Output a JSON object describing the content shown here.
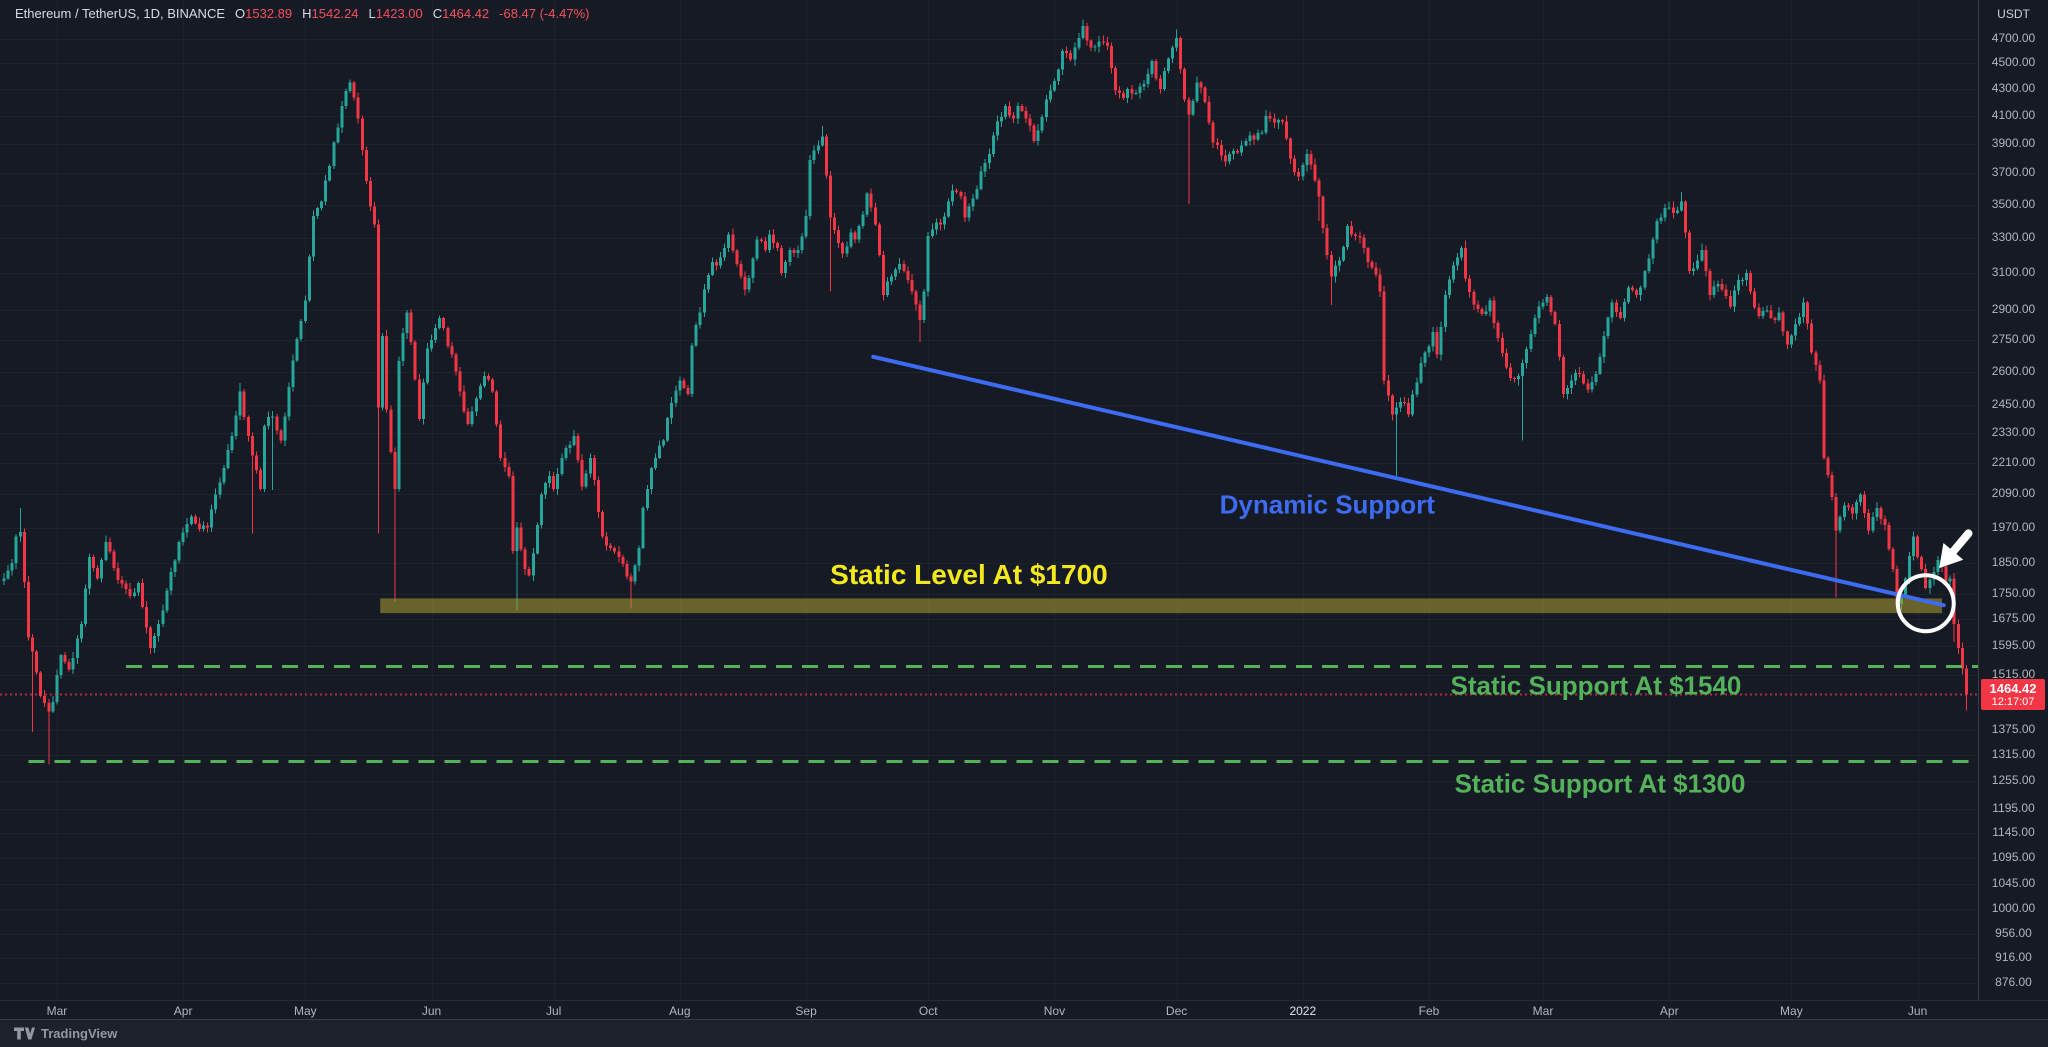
{
  "header": {
    "symbol_title": "Ethereum / TetherUS, 1D, BINANCE",
    "ohlc": {
      "o_label": "O",
      "o_value": "1532.89",
      "h_label": "H",
      "h_value": "1542.24",
      "l_label": "L",
      "l_value": "1423.00",
      "c_label": "C",
      "c_value": "1464.42",
      "change": "-68.47 (-4.47%)"
    }
  },
  "footer": {
    "brand": "TradingView"
  },
  "chart_data": {
    "type": "candlestick",
    "title": "Ethereum / TetherUS",
    "exchange": "BINANCE",
    "interval": "1D",
    "price_scale": "log",
    "currency_label": "USDT",
    "colors": {
      "up": "#26a69a",
      "down": "#f23645",
      "background": "#161a25",
      "axis_text": "#b2b5be",
      "badge": "#f23645",
      "trendline": "#3d6cf2",
      "level_text": "#f3e71d",
      "band_fill": "rgba(172,160,50,0.55)",
      "support": "#54b35a",
      "last_price_line": "#f23645",
      "highlight": "#ffffff"
    },
    "y_axis": {
      "ticks": [
        "4700.00",
        "4500.00",
        "4300.00",
        "4100.00",
        "3900.00",
        "3700.00",
        "3500.00",
        "3300.00",
        "3100.00",
        "2900.00",
        "2750.00",
        "2600.00",
        "2450.00",
        "2330.00",
        "2210.00",
        "2090.00",
        "1970.00",
        "1850.00",
        "1750.00",
        "1675.00",
        "1595.00",
        "1515.00",
        "1375.00",
        "1315.00",
        "1255.00",
        "1195.00",
        "1145.00",
        "1095.00",
        "1045.00",
        "1000.00",
        "956.00",
        "916.00",
        "876.00"
      ]
    },
    "x_axis": {
      "start_date": "2021-02-16",
      "labels": [
        {
          "text": "Mar",
          "day": 13
        },
        {
          "text": "Apr",
          "day": 44
        },
        {
          "text": "May",
          "day": 74
        },
        {
          "text": "Jun",
          "day": 105
        },
        {
          "text": "Jul",
          "day": 135
        },
        {
          "text": "Aug",
          "day": 166
        },
        {
          "text": "Sep",
          "day": 197
        },
        {
          "text": "Oct",
          "day": 227
        },
        {
          "text": "Nov",
          "day": 258
        },
        {
          "text": "Dec",
          "day": 288
        },
        {
          "text": "2022",
          "day": 319,
          "year": true
        },
        {
          "text": "Feb",
          "day": 350
        },
        {
          "text": "Mar",
          "day": 378
        },
        {
          "text": "Apr",
          "day": 409
        },
        {
          "text": "May",
          "day": 439
        },
        {
          "text": "Jun",
          "day": 470
        }
      ]
    },
    "last_candle": {
      "open": 1532.89,
      "high": 1542.24,
      "low": 1423.0,
      "close": 1464.42,
      "change": -68.47,
      "change_pct": -4.47
    },
    "last_price": {
      "value": "1464.42",
      "countdown": "12:17:07"
    },
    "close_anchors": [
      [
        0,
        1800
      ],
      [
        2,
        1850
      ],
      [
        3,
        1940
      ],
      [
        4,
        1955
      ],
      [
        6,
        1620
      ],
      [
        7,
        1580
      ],
      [
        9,
        1460
      ],
      [
        11,
        1420
      ],
      [
        12,
        1445
      ],
      [
        14,
        1570
      ],
      [
        16,
        1530
      ],
      [
        19,
        1660
      ],
      [
        21,
        1870
      ],
      [
        23,
        1800
      ],
      [
        25,
        1920
      ],
      [
        28,
        1795
      ],
      [
        31,
        1745
      ],
      [
        33,
        1785
      ],
      [
        36,
        1590
      ],
      [
        39,
        1700
      ],
      [
        41,
        1820
      ],
      [
        43,
        1920
      ],
      [
        46,
        2010
      ],
      [
        48,
        1965
      ],
      [
        50,
        1970
      ],
      [
        53,
        2135
      ],
      [
        56,
        2320
      ],
      [
        58,
        2510
      ],
      [
        60,
        2320
      ],
      [
        61,
        2240
      ],
      [
        63,
        2110
      ],
      [
        64,
        2360
      ],
      [
        66,
        2400
      ],
      [
        68,
        2300
      ],
      [
        70,
        2530
      ],
      [
        72,
        2755
      ],
      [
        74,
        2950
      ],
      [
        76,
        3430
      ],
      [
        78,
        3520
      ],
      [
        80,
        3750
      ],
      [
        81,
        3910
      ],
      [
        83,
        4170
      ],
      [
        85,
        4350
      ],
      [
        87,
        4080
      ],
      [
        89,
        3650
      ],
      [
        91,
        3380
      ],
      [
        92,
        2440
      ],
      [
        93,
        2770
      ],
      [
        94,
        2430
      ],
      [
        96,
        2110
      ],
      [
        97,
        2650
      ],
      [
        99,
        2890
      ],
      [
        100,
        2740
      ],
      [
        102,
        2390
      ],
      [
        104,
        2710
      ],
      [
        107,
        2860
      ],
      [
        110,
        2680
      ],
      [
        112,
        2510
      ],
      [
        114,
        2370
      ],
      [
        116,
        2480
      ],
      [
        118,
        2580
      ],
      [
        120,
        2510
      ],
      [
        122,
        2230
      ],
      [
        124,
        2160
      ],
      [
        125,
        1890
      ],
      [
        126,
        1970
      ],
      [
        128,
        1830
      ],
      [
        129,
        1810
      ],
      [
        131,
        1980
      ],
      [
        132,
        2090
      ],
      [
        134,
        2160
      ],
      [
        135,
        2110
      ],
      [
        137,
        2230
      ],
      [
        140,
        2320
      ],
      [
        142,
        2120
      ],
      [
        144,
        2230
      ],
      [
        147,
        1940
      ],
      [
        149,
        1900
      ],
      [
        151,
        1870
      ],
      [
        154,
        1790
      ],
      [
        156,
        1900
      ],
      [
        157,
        2040
      ],
      [
        159,
        2190
      ],
      [
        160,
        2230
      ],
      [
        162,
        2300
      ],
      [
        164,
        2460
      ],
      [
        166,
        2560
      ],
      [
        168,
        2500
      ],
      [
        169,
        2725
      ],
      [
        171,
        2890
      ],
      [
        172,
        3010
      ],
      [
        174,
        3160
      ],
      [
        175,
        3140
      ],
      [
        177,
        3240
      ],
      [
        178,
        3320
      ],
      [
        180,
        3150
      ],
      [
        182,
        3010
      ],
      [
        184,
        3180
      ],
      [
        185,
        3290
      ],
      [
        187,
        3230
      ],
      [
        188,
        3320
      ],
      [
        190,
        3240
      ],
      [
        191,
        3100
      ],
      [
        193,
        3230
      ],
      [
        195,
        3230
      ],
      [
        197,
        3430
      ],
      [
        198,
        3790
      ],
      [
        200,
        3890
      ],
      [
        201,
        3950
      ],
      [
        203,
        3420
      ],
      [
        205,
        3270
      ],
      [
        206,
        3210
      ],
      [
        208,
        3330
      ],
      [
        209,
        3290
      ],
      [
        211,
        3440
      ],
      [
        212,
        3570
      ],
      [
        214,
        3380
      ],
      [
        216,
        2980
      ],
      [
        218,
        3080
      ],
      [
        220,
        3150
      ],
      [
        222,
        3060
      ],
      [
        224,
        2930
      ],
      [
        225,
        2850
      ],
      [
        226,
        3000
      ],
      [
        227,
        3310
      ],
      [
        229,
        3390
      ],
      [
        230,
        3380
      ],
      [
        232,
        3520
      ],
      [
        233,
        3590
      ],
      [
        235,
        3550
      ],
      [
        236,
        3420
      ],
      [
        238,
        3540
      ],
      [
        239,
        3600
      ],
      [
        241,
        3770
      ],
      [
        242,
        3830
      ],
      [
        244,
        4060
      ],
      [
        246,
        4170
      ],
      [
        248,
        4080
      ],
      [
        249,
        4170
      ],
      [
        251,
        4080
      ],
      [
        253,
        3920
      ],
      [
        255,
        4090
      ],
      [
        257,
        4290
      ],
      [
        259,
        4450
      ],
      [
        260,
        4600
      ],
      [
        262,
        4530
      ],
      [
        264,
        4710
      ],
      [
        265,
        4810
      ],
      [
        267,
        4630
      ],
      [
        269,
        4680
      ],
      [
        271,
        4640
      ],
      [
        273,
        4290
      ],
      [
        275,
        4230
      ],
      [
        276,
        4300
      ],
      [
        278,
        4270
      ],
      [
        280,
        4340
      ],
      [
        282,
        4520
      ],
      [
        284,
        4300
      ],
      [
        285,
        4440
      ],
      [
        287,
        4630
      ],
      [
        288,
        4710
      ],
      [
        290,
        4220
      ],
      [
        291,
        4110
      ],
      [
        293,
        4350
      ],
      [
        294,
        4310
      ],
      [
        296,
        4050
      ],
      [
        297,
        3910
      ],
      [
        299,
        3820
      ],
      [
        300,
        3780
      ],
      [
        302,
        3850
      ],
      [
        304,
        3890
      ],
      [
        306,
        3960
      ],
      [
        307,
        3930
      ],
      [
        309,
        3980
      ],
      [
        310,
        4100
      ],
      [
        312,
        4050
      ],
      [
        314,
        4060
      ],
      [
        316,
        3800
      ],
      [
        318,
        3680
      ],
      [
        320,
        3830
      ],
      [
        321,
        3760
      ],
      [
        323,
        3550
      ],
      [
        325,
        3200
      ],
      [
        326,
        3080
      ],
      [
        328,
        3170
      ],
      [
        330,
        3370
      ],
      [
        332,
        3310
      ],
      [
        334,
        3240
      ],
      [
        335,
        3160
      ],
      [
        337,
        3090
      ],
      [
        338,
        3000
      ],
      [
        339,
        2560
      ],
      [
        341,
        2410
      ],
      [
        342,
        2440
      ],
      [
        344,
        2460
      ],
      [
        345,
        2410
      ],
      [
        347,
        2550
      ],
      [
        349,
        2690
      ],
      [
        351,
        2790
      ],
      [
        352,
        2680
      ],
      [
        354,
        2980
      ],
      [
        356,
        3140
      ],
      [
        358,
        3240
      ],
      [
        359,
        3070
      ],
      [
        361,
        2930
      ],
      [
        363,
        2880
      ],
      [
        365,
        2950
      ],
      [
        367,
        2760
      ],
      [
        369,
        2620
      ],
      [
        370,
        2570
      ],
      [
        372,
        2580
      ],
      [
        373,
        2640
      ],
      [
        375,
        2780
      ],
      [
        377,
        2920
      ],
      [
        379,
        2970
      ],
      [
        381,
        2830
      ],
      [
        383,
        2500
      ],
      [
        385,
        2560
      ],
      [
        387,
        2590
      ],
      [
        389,
        2520
      ],
      [
        391,
        2590
      ],
      [
        393,
        2770
      ],
      [
        395,
        2940
      ],
      [
        397,
        2860
      ],
      [
        399,
        3020
      ],
      [
        401,
        2980
      ],
      [
        403,
        3110
      ],
      [
        405,
        3290
      ],
      [
        406,
        3400
      ],
      [
        408,
        3480
      ],
      [
        410,
        3450
      ],
      [
        412,
        3520
      ],
      [
        414,
        3110
      ],
      [
        416,
        3170
      ],
      [
        417,
        3230
      ],
      [
        419,
        2980
      ],
      [
        421,
        3040
      ],
      [
        422,
        3010
      ],
      [
        424,
        2920
      ],
      [
        426,
        3060
      ],
      [
        428,
        3100
      ],
      [
        429,
        3000
      ],
      [
        431,
        2870
      ],
      [
        433,
        2900
      ],
      [
        435,
        2850
      ],
      [
        436,
        2890
      ],
      [
        438,
        2730
      ],
      [
        440,
        2830
      ],
      [
        442,
        2940
      ],
      [
        444,
        2690
      ],
      [
        446,
        2560
      ],
      [
        447,
        2230
      ],
      [
        449,
        2080
      ],
      [
        450,
        1960
      ],
      [
        452,
        2050
      ],
      [
        454,
        2020
      ],
      [
        456,
        2090
      ],
      [
        458,
        1960
      ],
      [
        460,
        2040
      ],
      [
        462,
        1980
      ],
      [
        464,
        1830
      ],
      [
        465,
        1720
      ],
      [
        467,
        1800
      ],
      [
        469,
        1940
      ],
      [
        471,
        1830
      ],
      [
        472,
        1770
      ],
      [
        474,
        1820
      ],
      [
        475,
        1860
      ],
      [
        477,
        1790
      ],
      [
        478,
        1800
      ],
      [
        479,
        1660
      ],
      [
        480,
        1590
      ],
      [
        481,
        1533
      ],
      [
        482,
        1464.42
      ]
    ],
    "wick_overrides": [
      {
        "day": 4,
        "high": 2040
      },
      {
        "day": 7,
        "low": 1370
      },
      {
        "day": 11,
        "low": 1293
      },
      {
        "day": 25,
        "high": 1943
      },
      {
        "day": 58,
        "high": 2548
      },
      {
        "day": 61,
        "low": 1950
      },
      {
        "day": 66,
        "low": 2107
      },
      {
        "day": 85,
        "high": 4375
      },
      {
        "day": 92,
        "low": 1950
      },
      {
        "day": 96,
        "low": 1728
      },
      {
        "day": 126,
        "low": 1700
      },
      {
        "day": 154,
        "low": 1706
      },
      {
        "day": 201,
        "high": 4027
      },
      {
        "day": 203,
        "low": 3001
      },
      {
        "day": 216,
        "low": 2950
      },
      {
        "day": 225,
        "low": 2740
      },
      {
        "day": 265,
        "high": 4868
      },
      {
        "day": 288,
        "high": 4780
      },
      {
        "day": 291,
        "low": 3503
      },
      {
        "day": 323,
        "low": 3400
      },
      {
        "day": 326,
        "low": 2928
      },
      {
        "day": 342,
        "low": 2159
      },
      {
        "day": 359,
        "high": 3283
      },
      {
        "day": 373,
        "low": 2300
      },
      {
        "day": 412,
        "high": 3581
      },
      {
        "day": 450,
        "low": 1739
      },
      {
        "day": 465,
        "low": 1701
      },
      {
        "day": 479,
        "low": 1608
      }
    ],
    "annotations": {
      "trendline": {
        "label": "Dynamic Support",
        "from": {
          "day": 213.5,
          "price": 2670
        },
        "to": {
          "day": 476.4,
          "price": 1716
        },
        "label_at": {
          "day": 325,
          "price": 2051
        }
      },
      "level_band": {
        "label": "Static Level At $1700",
        "price_top": 1737,
        "price_bottom": 1692,
        "from_day": 92.4,
        "to_day": 476,
        "label_at": {
          "day": 237,
          "price": 1811
        }
      },
      "supports": [
        {
          "label": "Static Support At $1540",
          "price": 1540,
          "from_day": 30,
          "label_at": {
            "day": 391,
            "price": 1486
          }
        },
        {
          "label": "Static Support At $1300",
          "price": 1300,
          "from_day": 6,
          "label_at": {
            "day": 392,
            "price": 1248
          }
        }
      ],
      "highlight_circle": {
        "day": 472,
        "price": 1722,
        "radius_px": 28
      },
      "arrow": {
        "tail": {
          "day": 482.5,
          "price": 1950
        },
        "head": {
          "day": 475.3,
          "price": 1833
        }
      }
    }
  }
}
